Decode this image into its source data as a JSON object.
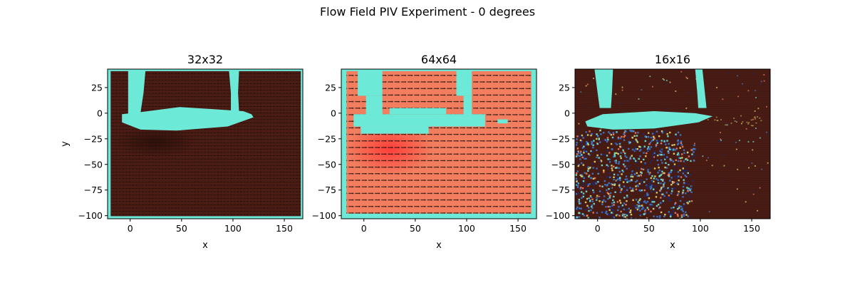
{
  "figure": {
    "title": "Flow Field PIV Experiment - 0 degrees"
  },
  "colors": {
    "background": "#ffffff",
    "axis": "#000000",
    "obstacle": "#6de9d8",
    "vector": "#1a0e0a",
    "dark_red": "#4a1c14",
    "salmon": "#f27d5f",
    "bright_red": "#ff4a3c",
    "blue": "#3a7bd5",
    "navy": "#1a2a7a",
    "yellow": "#e6d96a"
  },
  "chart_data": [
    {
      "type": "heatmap",
      "title": "32x32",
      "xlabel": "x",
      "ylabel": "y",
      "xlim": [
        -22,
        168
      ],
      "ylim": [
        -103,
        43
      ],
      "xticks": [
        0,
        50,
        100,
        150
      ],
      "yticks": [
        25,
        0,
        -25,
        -50,
        -75,
        -100
      ],
      "grid": false,
      "background_field": "dark red",
      "vector_spacing": {
        "dx": 3.2,
        "dy": 3.2
      },
      "obstacle_regions": [
        {
          "kind": "polygon",
          "points": [
            [
              -2,
              43
            ],
            [
              15,
              43
            ],
            [
              13,
              20
            ],
            [
              10,
              0
            ],
            [
              12,
              -5
            ],
            [
              -2,
              -5
            ]
          ]
        },
        {
          "kind": "polygon",
          "points": [
            [
              96,
              43
            ],
            [
              106,
              43
            ],
            [
              105,
              20
            ],
            [
              106,
              0
            ],
            [
              98,
              -5
            ],
            [
              98,
              20
            ]
          ]
        },
        {
          "kind": "polygon",
          "points": [
            [
              -8,
              -1
            ],
            [
              10,
              1
            ],
            [
              48,
              6
            ],
            [
              80,
              4
            ],
            [
              110,
              2
            ],
            [
              118,
              -1
            ],
            [
              120,
              -4
            ],
            [
              95,
              -13
            ],
            [
              45,
              -17
            ],
            [
              10,
              -16
            ],
            [
              -8,
              -9
            ]
          ]
        },
        {
          "kind": "rect",
          "x0": -22,
          "x1": -19,
          "y0": -103,
          "y1": 43
        },
        {
          "kind": "rect",
          "x0": 166,
          "x1": 168,
          "y0": -103,
          "y1": 43
        },
        {
          "kind": "rect",
          "x0": -22,
          "x1": 168,
          "y0": 41,
          "y1": 43
        },
        {
          "kind": "rect",
          "x0": -22,
          "x1": 168,
          "y0": -103,
          "y1": -100.5
        }
      ],
      "wake": {
        "x": 25,
        "y": -28,
        "rx": 40,
        "ry": 15,
        "tone": "near-black red"
      }
    },
    {
      "type": "heatmap",
      "title": "64x64",
      "xlabel": "x",
      "ylabel": "",
      "xlim": [
        -22,
        168
      ],
      "ylim": [
        -103,
        43
      ],
      "xticks": [
        0,
        50,
        100,
        150
      ],
      "yticks": [
        25,
        0,
        -25,
        -50,
        -75,
        -100
      ],
      "grid": false,
      "background_field": "salmon",
      "vector_spacing": {
        "dx": 6.4,
        "dy": 6.4
      },
      "obstacle_regions": [
        {
          "kind": "rect",
          "x0": -6,
          "x1": 18,
          "y0": 17,
          "y1": 43
        },
        {
          "kind": "rect",
          "x0": 2,
          "x1": 18,
          "y0": -2,
          "y1": 17
        },
        {
          "kind": "rect",
          "x0": 90,
          "x1": 105,
          "y0": 17,
          "y1": 43
        },
        {
          "kind": "rect",
          "x0": 97,
          "x1": 105,
          "y0": -2,
          "y1": 17
        },
        {
          "kind": "rect",
          "x0": -10,
          "x1": 118,
          "y0": -13,
          "y1": -1
        },
        {
          "kind": "rect",
          "x0": 25,
          "x1": 80,
          "y0": -1,
          "y1": 5
        },
        {
          "kind": "rect",
          "x0": -3,
          "x1": 63,
          "y0": -20,
          "y1": -13
        },
        {
          "kind": "rect",
          "x0": 130,
          "x1": 140,
          "y0": -10,
          "y1": -6
        },
        {
          "kind": "rect",
          "x0": -22,
          "x1": -17,
          "y0": -103,
          "y1": 43
        },
        {
          "kind": "rect",
          "x0": 163,
          "x1": 168,
          "y0": -103,
          "y1": 43
        },
        {
          "kind": "rect",
          "x0": -22,
          "x1": 168,
          "y0": 41,
          "y1": 43
        },
        {
          "kind": "rect",
          "x0": -22,
          "x1": 168,
          "y0": -103,
          "y1": -98
        }
      ],
      "wake": {
        "x": 25,
        "y": -35,
        "rx": 42,
        "ry": 25,
        "tone": "bright red"
      }
    },
    {
      "type": "heatmap",
      "title": "16x16",
      "xlabel": "x",
      "ylabel": "",
      "xlim": [
        -22,
        168
      ],
      "ylim": [
        -103,
        43
      ],
      "xticks": [
        0,
        50,
        100,
        150
      ],
      "yticks": [
        25,
        0,
        -25,
        -50,
        -75,
        -100
      ],
      "grid": false,
      "background_field": "dark red",
      "vector_spacing": {
        "dx": 1.8,
        "dy": 1.8
      },
      "obstacle_regions": [
        {
          "kind": "polygon",
          "points": [
            [
              -3,
              43
            ],
            [
              15,
              43
            ],
            [
              14,
              20
            ],
            [
              13,
              5
            ],
            [
              2,
              5
            ],
            [
              0,
              20
            ]
          ]
        },
        {
          "kind": "polygon",
          "points": [
            [
              95,
              43
            ],
            [
              102,
              43
            ],
            [
              106,
              5
            ],
            [
              98,
              5
            ],
            [
              97,
              20
            ]
          ]
        },
        {
          "kind": "polygon",
          "points": [
            [
              -12,
              -8
            ],
            [
              5,
              -1
            ],
            [
              55,
              2
            ],
            [
              95,
              0
            ],
            [
              112,
              -3
            ],
            [
              98,
              -9
            ],
            [
              55,
              -15
            ],
            [
              15,
              -16
            ],
            [
              -10,
              -13
            ]
          ]
        }
      ],
      "turbulence": {
        "polygon": [
          [
            -22,
            -18
          ],
          [
            -5,
            -16
          ],
          [
            75,
            -16
          ],
          [
            95,
            -30
          ],
          [
            90,
            -103
          ],
          [
            -22,
            -103
          ]
        ],
        "colors": [
          "blue",
          "navy",
          "obstacle",
          "yellow",
          "salmon"
        ]
      }
    }
  ]
}
